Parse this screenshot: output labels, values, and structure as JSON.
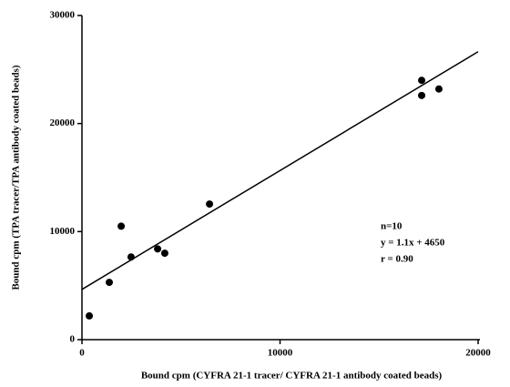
{
  "chart_data": {
    "type": "scatter",
    "x_label": "Bound cpm (CYFRA 21-1 tracer/ CYFRA 21-1 antibody coated beads)",
    "y_label": "Bound cpm (TPA tracer/TPA antibody coated beads)",
    "x": [
      370,
      1380,
      1980,
      2480,
      3820,
      4180,
      6440,
      17150,
      17150,
      18020
    ],
    "values": [
      2200,
      5300,
      10500,
      7650,
      8400,
      8000,
      12550,
      24000,
      22600,
      23200
    ],
    "color": "#000000",
    "fit_line": {
      "x": [
        0,
        20000
      ],
      "y": [
        4650,
        26650
      ]
    },
    "annotations": [
      "n=10",
      "y  =  1.1x  +  4650",
      "r  =  0.90"
    ],
    "xlim": [
      0,
      20000
    ],
    "xticks": [
      0,
      10000,
      20000
    ],
    "ylim": [
      0,
      30000
    ],
    "yticks": [
      0,
      10000,
      20000,
      30000
    ],
    "grid": false
  }
}
